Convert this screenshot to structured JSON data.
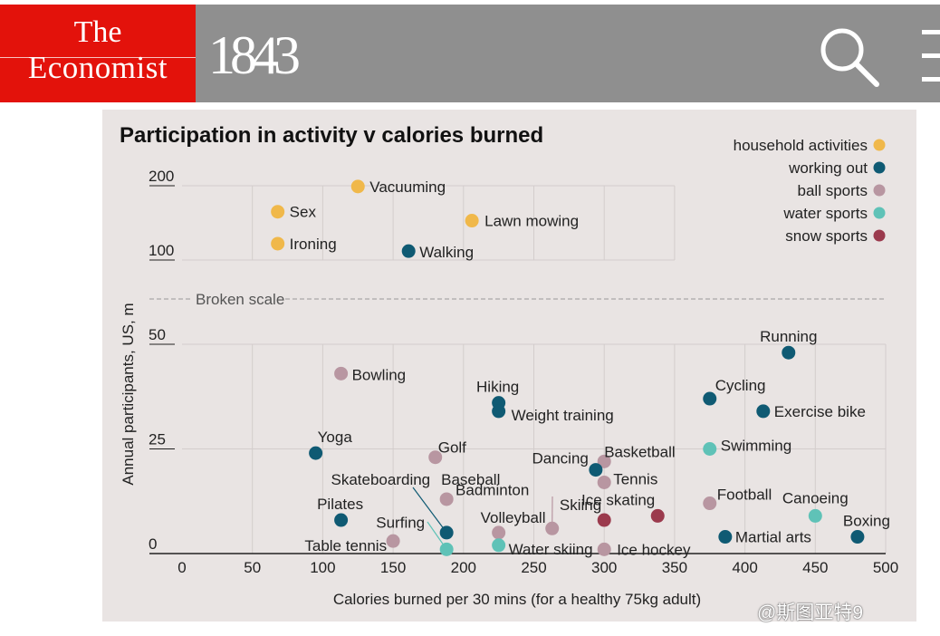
{
  "masthead": {
    "logo_the": "The",
    "logo_name": "Economist",
    "magazine": "1843",
    "search_icon": "search-icon",
    "menu_icon": "menu-icon",
    "colors": {
      "logo_red": "#e3120b",
      "bar_grey": "#8f8f8f"
    }
  },
  "watermark": "@斯图亚特9",
  "chart_data": {
    "type": "scatter",
    "title": "Participation in activity v calories burned",
    "xlabel": "Calories burned per 30 mins (for a healthy 75kg adult)",
    "ylabel": "Annual participants, US, m",
    "xlim": [
      0,
      500
    ],
    "x_ticks": [
      0,
      50,
      100,
      150,
      200,
      250,
      300,
      350,
      400,
      450,
      500
    ],
    "y_ticks_upper": [
      100,
      200
    ],
    "y_ticks_lower": [
      0,
      25,
      50
    ],
    "ylim_upper": [
      100,
      200
    ],
    "ylim_lower": [
      0,
      50
    ],
    "broken_scale_label": "Broken scale",
    "grid": true,
    "legend_position": "top-right",
    "categories": [
      {
        "name": "household activities",
        "color": "#f0b84a"
      },
      {
        "name": "working out",
        "color": "#0f5a73"
      },
      {
        "name": "ball sports",
        "color": "#b896a1"
      },
      {
        "name": "water sports",
        "color": "#5fc2b7"
      },
      {
        "name": "snow sports",
        "color": "#9b3a4d"
      }
    ],
    "points": [
      {
        "label": "Vacuuming",
        "x": 125,
        "y": 199,
        "category": "household activities"
      },
      {
        "label": "Sex",
        "x": 68,
        "y": 165,
        "category": "household activities"
      },
      {
        "label": "Lawn mowing",
        "x": 206,
        "y": 153,
        "category": "household activities"
      },
      {
        "label": "Ironing",
        "x": 68,
        "y": 122,
        "category": "household activities"
      },
      {
        "label": "Walking",
        "x": 161,
        "y": 112,
        "category": "working out"
      },
      {
        "label": "Running",
        "x": 431,
        "y": 48,
        "category": "working out"
      },
      {
        "label": "Bowling",
        "x": 113,
        "y": 43,
        "category": "ball sports"
      },
      {
        "label": "Cycling",
        "x": 375,
        "y": 37,
        "category": "working out"
      },
      {
        "label": "Hiking",
        "x": 225,
        "y": 36,
        "category": "working out"
      },
      {
        "label": "Exercise bike",
        "x": 413,
        "y": 34,
        "category": "working out"
      },
      {
        "label": "Weight training",
        "x": 225,
        "y": 34,
        "category": "working out"
      },
      {
        "label": "Swimming",
        "x": 375,
        "y": 25,
        "category": "water sports"
      },
      {
        "label": "Yoga",
        "x": 95,
        "y": 24,
        "category": "working out"
      },
      {
        "label": "Golf",
        "x": 180,
        "y": 23,
        "category": "ball sports"
      },
      {
        "label": "Basketball",
        "x": 300,
        "y": 22,
        "category": "ball sports"
      },
      {
        "label": "Dancing",
        "x": 294,
        "y": 20,
        "category": "working out"
      },
      {
        "label": "Tennis",
        "x": 300,
        "y": 17,
        "category": "ball sports"
      },
      {
        "label": "Baseball",
        "x": 188,
        "y": 13,
        "category": "ball sports"
      },
      {
        "label": "Football",
        "x": 375,
        "y": 12,
        "category": "ball sports"
      },
      {
        "label": "Canoeing",
        "x": 450,
        "y": 9,
        "category": "water sports"
      },
      {
        "label": "Ice skating",
        "x": 338,
        "y": 9,
        "category": "snow sports"
      },
      {
        "label": "Skiing",
        "x": 300,
        "y": 8,
        "category": "snow sports"
      },
      {
        "label": "Pilates",
        "x": 113,
        "y": 8,
        "category": "working out"
      },
      {
        "label": "Badminton",
        "x": 263,
        "y": 6,
        "category": "ball sports"
      },
      {
        "label": "Volleyball",
        "x": 225,
        "y": 5,
        "category": "ball sports"
      },
      {
        "label": "Skateboarding",
        "x": 188,
        "y": 5,
        "category": "working out"
      },
      {
        "label": "Martial arts",
        "x": 386,
        "y": 4,
        "category": "working out"
      },
      {
        "label": "Boxing",
        "x": 480,
        "y": 4,
        "category": "working out"
      },
      {
        "label": "Table tennis",
        "x": 150,
        "y": 3,
        "category": "ball sports"
      },
      {
        "label": "Water skiing",
        "x": 225,
        "y": 2,
        "category": "water sports"
      },
      {
        "label": "Surfing",
        "x": 188,
        "y": 1,
        "category": "water sports"
      },
      {
        "label": "Ice hockey",
        "x": 300,
        "y": 1,
        "category": "ball sports"
      }
    ]
  }
}
